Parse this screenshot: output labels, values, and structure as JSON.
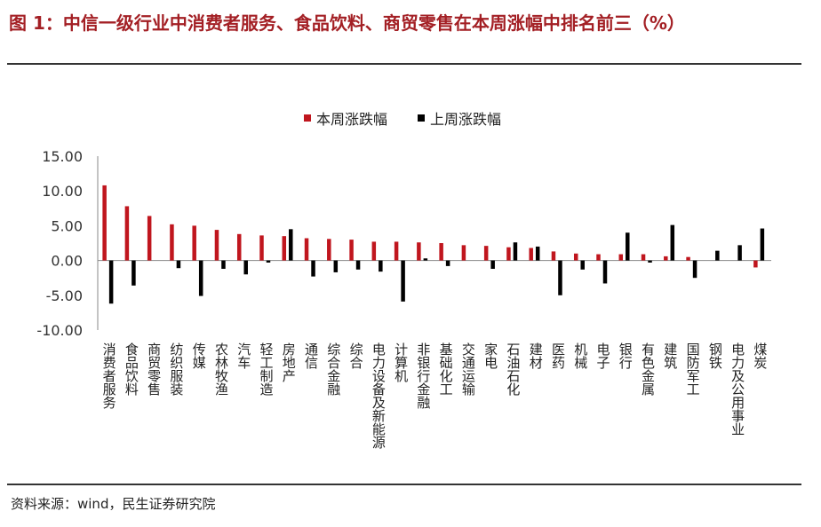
{
  "title": "图 1：中信一级行业中消费者服务、食品饮料、商贸零售在本周涨幅中排名前三（%）",
  "source": "资料来源：wind，民生证券研究院",
  "colors": {
    "this_week": "#C0161E",
    "last_week": "#000000",
    "title": "#A31F24"
  },
  "chart_data": {
    "type": "bar",
    "title": "",
    "xlabel": "",
    "ylabel": "",
    "ylim": [
      -10,
      15
    ],
    "yticks": [
      15,
      10,
      5,
      0,
      -5,
      -10
    ],
    "ytick_labels": [
      "15.00",
      "10.00",
      "5.00",
      "0.00",
      "-5.00",
      "-10.00"
    ],
    "legend_position": "top-center",
    "categories": [
      "消费者服务",
      "食品饮料",
      "商贸零售",
      "纺织服装",
      "传媒",
      "农林牧渔",
      "汽车",
      "轻工制造",
      "房地产",
      "通信",
      "综合金融",
      "综合",
      "电力设备及新能源",
      "计算机",
      "非银行金融",
      "基础化工",
      "交通运输",
      "家电",
      "石油石化",
      "建材",
      "医药",
      "机械",
      "电子",
      "银行",
      "有色金属",
      "建筑",
      "国防军工",
      "钢铁",
      "电力及公用事业",
      "煤炭"
    ],
    "series": [
      {
        "name": "本周涨跌幅",
        "color": "#C0161E",
        "values": [
          10.8,
          7.8,
          6.4,
          5.2,
          5.0,
          4.4,
          3.8,
          3.6,
          3.5,
          3.2,
          3.1,
          3.0,
          2.7,
          2.7,
          2.6,
          2.5,
          2.2,
          2.1,
          1.9,
          1.8,
          1.3,
          1.0,
          0.9,
          0.9,
          0.9,
          0.6,
          0.5,
          0.0,
          0.0,
          -1.0
        ]
      },
      {
        "name": "上周涨跌幅",
        "color": "#000000",
        "values": [
          -6.2,
          -3.6,
          0.0,
          -1.1,
          -5.1,
          -1.2,
          -2.0,
          -0.3,
          4.5,
          -2.3,
          -1.7,
          -1.3,
          -1.6,
          -5.9,
          0.3,
          -0.8,
          0.0,
          -1.2,
          2.6,
          2.0,
          -5.0,
          -1.3,
          -3.3,
          4.0,
          -0.3,
          5.1,
          -2.5,
          1.4,
          2.2,
          4.6
        ]
      }
    ]
  }
}
